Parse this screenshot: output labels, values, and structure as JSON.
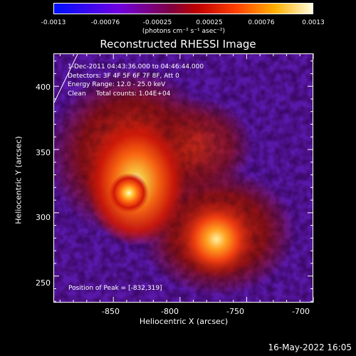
{
  "colorbar": {
    "ticks": [
      "-0.0013",
      "-0.00076",
      "-0.00025",
      "0.00025",
      "0.00076",
      "0.0013"
    ],
    "units": "(photons cm⁻² s⁻¹ asec⁻²)"
  },
  "title": "Reconstructed RHESSI Image",
  "annotations": {
    "time_range": "1-Dec-2011 04:43:36.000 to 04:46:44.000",
    "detectors": "Detectors: 3F 4F 5F 6F 7F 8F, Att 0",
    "energy": "Energy Range: 12.0 - 25.0 keV",
    "clean_counts": "Clean     Total counts: 1.04E+04",
    "peak": "Position of Peak = [-832,319]"
  },
  "axes": {
    "xlabel": "Heliocentric X (arcsec)",
    "ylabel": "Heliocentric Y (arcsec)",
    "x_ticks": [
      "-850",
      "-800",
      "-750",
      "-700"
    ],
    "y_ticks": [
      "400",
      "350",
      "300",
      "250"
    ],
    "x_range": [
      -895,
      -700
    ],
    "y_range": [
      229,
      426
    ]
  },
  "footer": {
    "date": "16-May-2022 16:05"
  }
}
